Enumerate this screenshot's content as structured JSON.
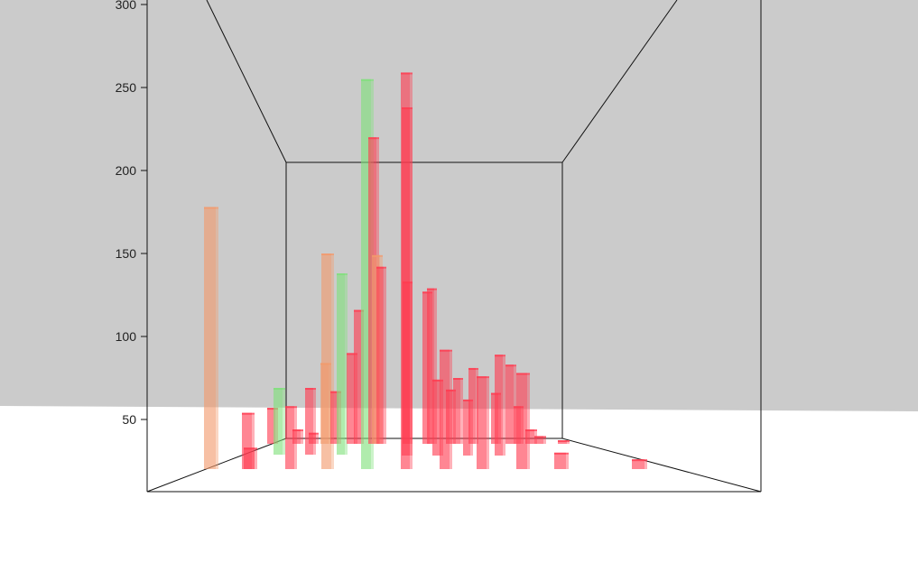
{
  "chart_data": {
    "type": "bar",
    "chart_style": "3d-bar",
    "z_ticks": [
      "50",
      "100",
      "150",
      "200",
      "250",
      "300"
    ],
    "z_range": [
      50,
      300
    ],
    "grid": false,
    "legend": "none",
    "colors": {
      "background": "#cbcbcb",
      "floor": "#ffffff",
      "frame": "#111111",
      "red": "#ff3b50",
      "orange": "#f29a6c",
      "green": "#7fe07a"
    },
    "bars": [
      {
        "value": 178,
        "color": "orange"
      },
      {
        "value": 54,
        "color": "red"
      },
      {
        "value": 33,
        "color": "red"
      },
      {
        "value": 57,
        "color": "red"
      },
      {
        "value": 69,
        "color": "green"
      },
      {
        "value": 58,
        "color": "red"
      },
      {
        "value": 44,
        "color": "red"
      },
      {
        "value": 69,
        "color": "red"
      },
      {
        "value": 42,
        "color": "red"
      },
      {
        "value": 150,
        "color": "orange"
      },
      {
        "value": 84,
        "color": "orange"
      },
      {
        "value": 67,
        "color": "red"
      },
      {
        "value": 138,
        "color": "green"
      },
      {
        "value": 90,
        "color": "red"
      },
      {
        "value": 116,
        "color": "red"
      },
      {
        "value": 255,
        "color": "green"
      },
      {
        "value": 220,
        "color": "red"
      },
      {
        "value": 149,
        "color": "orange"
      },
      {
        "value": 142,
        "color": "red"
      },
      {
        "value": 259,
        "color": "red"
      },
      {
        "value": 238,
        "color": "red"
      },
      {
        "value": 133,
        "color": "red"
      },
      {
        "value": 127,
        "color": "red"
      },
      {
        "value": 129,
        "color": "red"
      },
      {
        "value": 74,
        "color": "red"
      },
      {
        "value": 92,
        "color": "red"
      },
      {
        "value": 68,
        "color": "red"
      },
      {
        "value": 75,
        "color": "red"
      },
      {
        "value": 62,
        "color": "red"
      },
      {
        "value": 81,
        "color": "red"
      },
      {
        "value": 76,
        "color": "red"
      },
      {
        "value": 66,
        "color": "red"
      },
      {
        "value": 89,
        "color": "red"
      },
      {
        "value": 83,
        "color": "red"
      },
      {
        "value": 58,
        "color": "red"
      },
      {
        "value": 78,
        "color": "red"
      },
      {
        "value": 44,
        "color": "red"
      },
      {
        "value": 40,
        "color": "red"
      },
      {
        "value": 30,
        "color": "red"
      },
      {
        "value": 22,
        "color": "red"
      },
      {
        "value": 26,
        "color": "red"
      }
    ]
  }
}
